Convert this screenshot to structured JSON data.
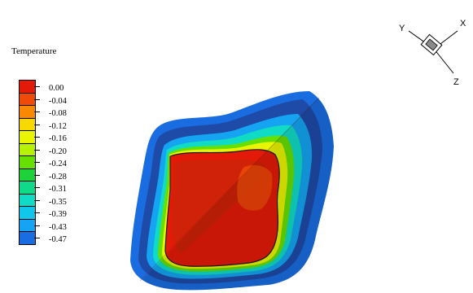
{
  "legend": {
    "title": "Temperature",
    "levels": [
      {
        "label": "0.00",
        "color": "#e41a08"
      },
      {
        "label": "-0.04",
        "color": "#f04a08"
      },
      {
        "label": "-0.08",
        "color": "#f98a00"
      },
      {
        "label": "-0.12",
        "color": "#f7d800"
      },
      {
        "label": "-0.16",
        "color": "#e9f500"
      },
      {
        "label": "-0.20",
        "color": "#b6f100"
      },
      {
        "label": "-0.24",
        "color": "#66e000"
      },
      {
        "label": "-0.28",
        "color": "#1fd23a"
      },
      {
        "label": "-0.31",
        "color": "#11d98a"
      },
      {
        "label": "-0.35",
        "color": "#10dcc6"
      },
      {
        "label": "-0.39",
        "color": "#10c6ea"
      },
      {
        "label": "-0.43",
        "color": "#14a4f2"
      },
      {
        "label": "-0.47",
        "color": "#1a6de0"
      }
    ]
  },
  "axes": {
    "x": "X",
    "y": "Y",
    "z": "Z"
  }
}
